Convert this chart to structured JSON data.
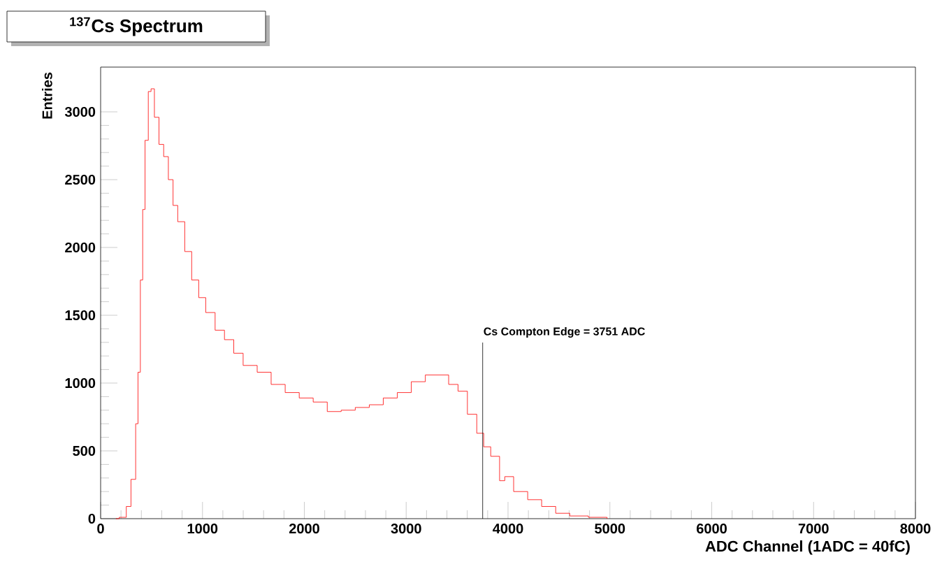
{
  "chart_data": {
    "type": "step",
    "title": "$^{137}$Cs Spectrum",
    "xlabel": "ADC Channel (1ADC = 40fC)",
    "ylabel": "Entries",
    "x": [
      150,
      183,
      252,
      298,
      344,
      367,
      390,
      413,
      436,
      468,
      495,
      528,
      573,
      619,
      665,
      711,
      757,
      826,
      894,
      963,
      1032,
      1124,
      1216,
      1307,
      1399,
      1537,
      1674,
      1812,
      1950,
      2087,
      2225,
      2362,
      2500,
      2638,
      2775,
      2913,
      3050,
      3188,
      3326,
      3417,
      3509,
      3601,
      3693,
      3761,
      3830,
      3917,
      3968,
      4055,
      4193,
      4330,
      4468,
      4606,
      4789,
      4972
    ],
    "series": [
      {
        "color": "#ff0000",
        "values": [
          0,
          10,
          90,
          290,
          700,
          1080,
          1760,
          2280,
          2790,
          3150,
          3170,
          2960,
          2760,
          2670,
          2500,
          2310,
          2190,
          1970,
          1760,
          1630,
          1520,
          1390,
          1320,
          1220,
          1130,
          1080,
          990,
          930,
          890,
          860,
          790,
          800,
          820,
          840,
          890,
          930,
          1010,
          1060,
          1060,
          990,
          940,
          770,
          630,
          530,
          460,
          280,
          310,
          200,
          140,
          90,
          40,
          20,
          10,
          0
        ]
      }
    ],
    "xlim": [
      0,
      8000
    ],
    "ylim": [
      0,
      3330
    ],
    "xticks": [
      0,
      1000,
      2000,
      3000,
      4000,
      5000,
      6000,
      7000,
      8000
    ],
    "yticks": [
      0,
      500,
      1000,
      1500,
      2000,
      2500,
      3000
    ],
    "ref_lines": [
      {
        "axis": "x",
        "value": 3751,
        "label": "Cs Compton Edge = 3751 ADC",
        "color": "#000000"
      }
    ],
    "grid": false,
    "marker": "none",
    "line_style": "solid"
  }
}
